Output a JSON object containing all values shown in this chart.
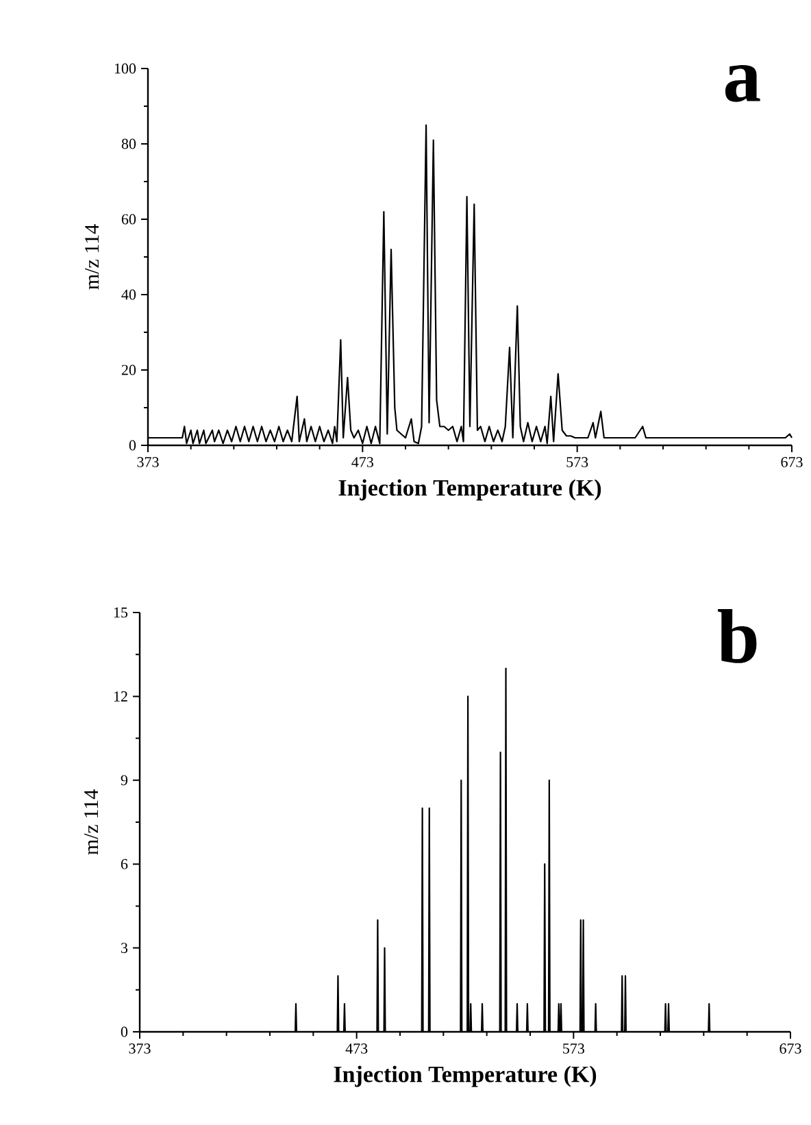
{
  "chart_data": [
    {
      "type": "line",
      "title": "a",
      "xlabel": "Injection Temperature (K)",
      "ylabel": "m/z 114",
      "color": "#000000",
      "xlim": [
        373,
        673
      ],
      "ylim": [
        0,
        100
      ],
      "xticks": [
        373,
        473,
        573,
        673
      ],
      "yticks": [
        0,
        20,
        40,
        60,
        80,
        100
      ],
      "x": [
        373,
        389,
        390,
        391,
        393,
        394,
        396,
        397,
        399,
        400,
        403,
        404,
        406,
        408,
        410,
        412,
        414,
        416,
        418,
        420,
        422,
        424,
        426,
        428,
        430,
        432,
        434,
        436,
        438,
        440,
        442.5,
        443.5,
        445.9,
        447,
        449,
        451,
        453,
        455,
        457,
        459,
        460,
        461,
        462.8,
        464,
        466,
        467.5,
        469,
        471,
        473,
        475,
        477,
        479,
        481,
        482.9,
        484.5,
        486.3,
        488,
        489,
        491,
        493,
        495.7,
        497,
        499,
        500.5,
        502.6,
        504,
        506,
        507.5,
        509,
        511,
        513,
        515,
        517,
        519,
        520,
        521.6,
        523,
        525,
        526.5,
        528,
        530,
        532,
        534,
        536,
        538,
        539.5,
        541.5,
        543,
        545.1,
        546.5,
        548,
        550,
        552,
        554,
        556,
        558,
        559,
        560.7,
        562,
        564.1,
        566,
        568,
        570,
        572,
        578,
        580.4,
        581.5,
        584,
        585.5,
        600,
        603.5,
        605,
        670,
        672,
        673
      ],
      "values": [
        2,
        2,
        5,
        0.5,
        4,
        0.5,
        4,
        0.5,
        4,
        0.5,
        4,
        1,
        4,
        0.5,
        4,
        1,
        5,
        1,
        5,
        1,
        5,
        1,
        5,
        1,
        4,
        1,
        5,
        1,
        4,
        1,
        13,
        1,
        7,
        1,
        5,
        1,
        5,
        1,
        4,
        0.5,
        5,
        1,
        28,
        2,
        18,
        4,
        2,
        4,
        0.5,
        5,
        0.5,
        5,
        0.5,
        62,
        3,
        52,
        10,
        4,
        3,
        2,
        7,
        1,
        0.5,
        5,
        85,
        6,
        81,
        12,
        5,
        5,
        4,
        5,
        1,
        5,
        1,
        66,
        5,
        64,
        4,
        5,
        1,
        5,
        1,
        4,
        1,
        5,
        26,
        2,
        37,
        5,
        1,
        6,
        1,
        5,
        1,
        5,
        0.5,
        13,
        1,
        19,
        4,
        2.5,
        2.5,
        2,
        2,
        6,
        2,
        9,
        2,
        2,
        5,
        2,
        2,
        3,
        2
      ]
    },
    {
      "type": "line",
      "title": "b",
      "xlabel": "Injection Temperature (K)",
      "ylabel": "m/z 114",
      "color": "#000000",
      "xlim": [
        373,
        673
      ],
      "ylim": [
        0,
        15
      ],
      "xticks": [
        373,
        473,
        573,
        673
      ],
      "yticks": [
        0,
        3,
        6,
        9,
        12,
        15
      ],
      "x": [
        373,
        444.7,
        445,
        445.3,
        464.1,
        464.4,
        464.7,
        467.1,
        467.4,
        467.7,
        482.4,
        482.7,
        483,
        485.6,
        485.9,
        486.2,
        503,
        503.3,
        503.6,
        506.2,
        506.5,
        506.8,
        520.9,
        521.2,
        521.5,
        524,
        524.3,
        524.6,
        525.3,
        525.6,
        525.9,
        530.6,
        530.9,
        531.2,
        539,
        539.3,
        539.6,
        541.5,
        541.8,
        542.1,
        546.7,
        547,
        547.3,
        551.4,
        551.7,
        552,
        559.4,
        559.7,
        560,
        561.5,
        561.8,
        562.1,
        565.9,
        566.2,
        566.5,
        566.9,
        567.2,
        567.5,
        576,
        576.3,
        576.6,
        577.2,
        577.5,
        577.8,
        582.9,
        583.2,
        583.5,
        595.1,
        595.4,
        595.7,
        596.6,
        596.9,
        597.2,
        615.1,
        615.4,
        615.7,
        616.5,
        616.8,
        617.1,
        635.2,
        635.5,
        635.8,
        673
      ],
      "values": [
        0,
        0,
        1,
        0,
        0,
        2,
        0,
        0,
        1,
        0,
        0,
        4,
        0,
        0,
        3,
        0,
        0,
        8,
        0,
        0,
        8,
        0,
        0,
        9,
        0,
        0,
        12,
        0,
        0,
        1,
        0,
        0,
        1,
        0,
        0,
        10,
        0,
        0,
        13,
        0,
        0,
        1,
        0,
        0,
        1,
        0,
        0,
        6,
        0,
        0,
        9,
        0,
        0,
        1,
        0,
        0,
        1,
        0,
        0,
        4,
        0,
        0,
        4,
        0,
        0,
        1,
        0,
        0,
        2,
        0,
        0,
        2,
        0,
        0,
        1,
        0,
        0,
        1,
        0,
        0,
        1,
        0,
        0
      ]
    }
  ]
}
